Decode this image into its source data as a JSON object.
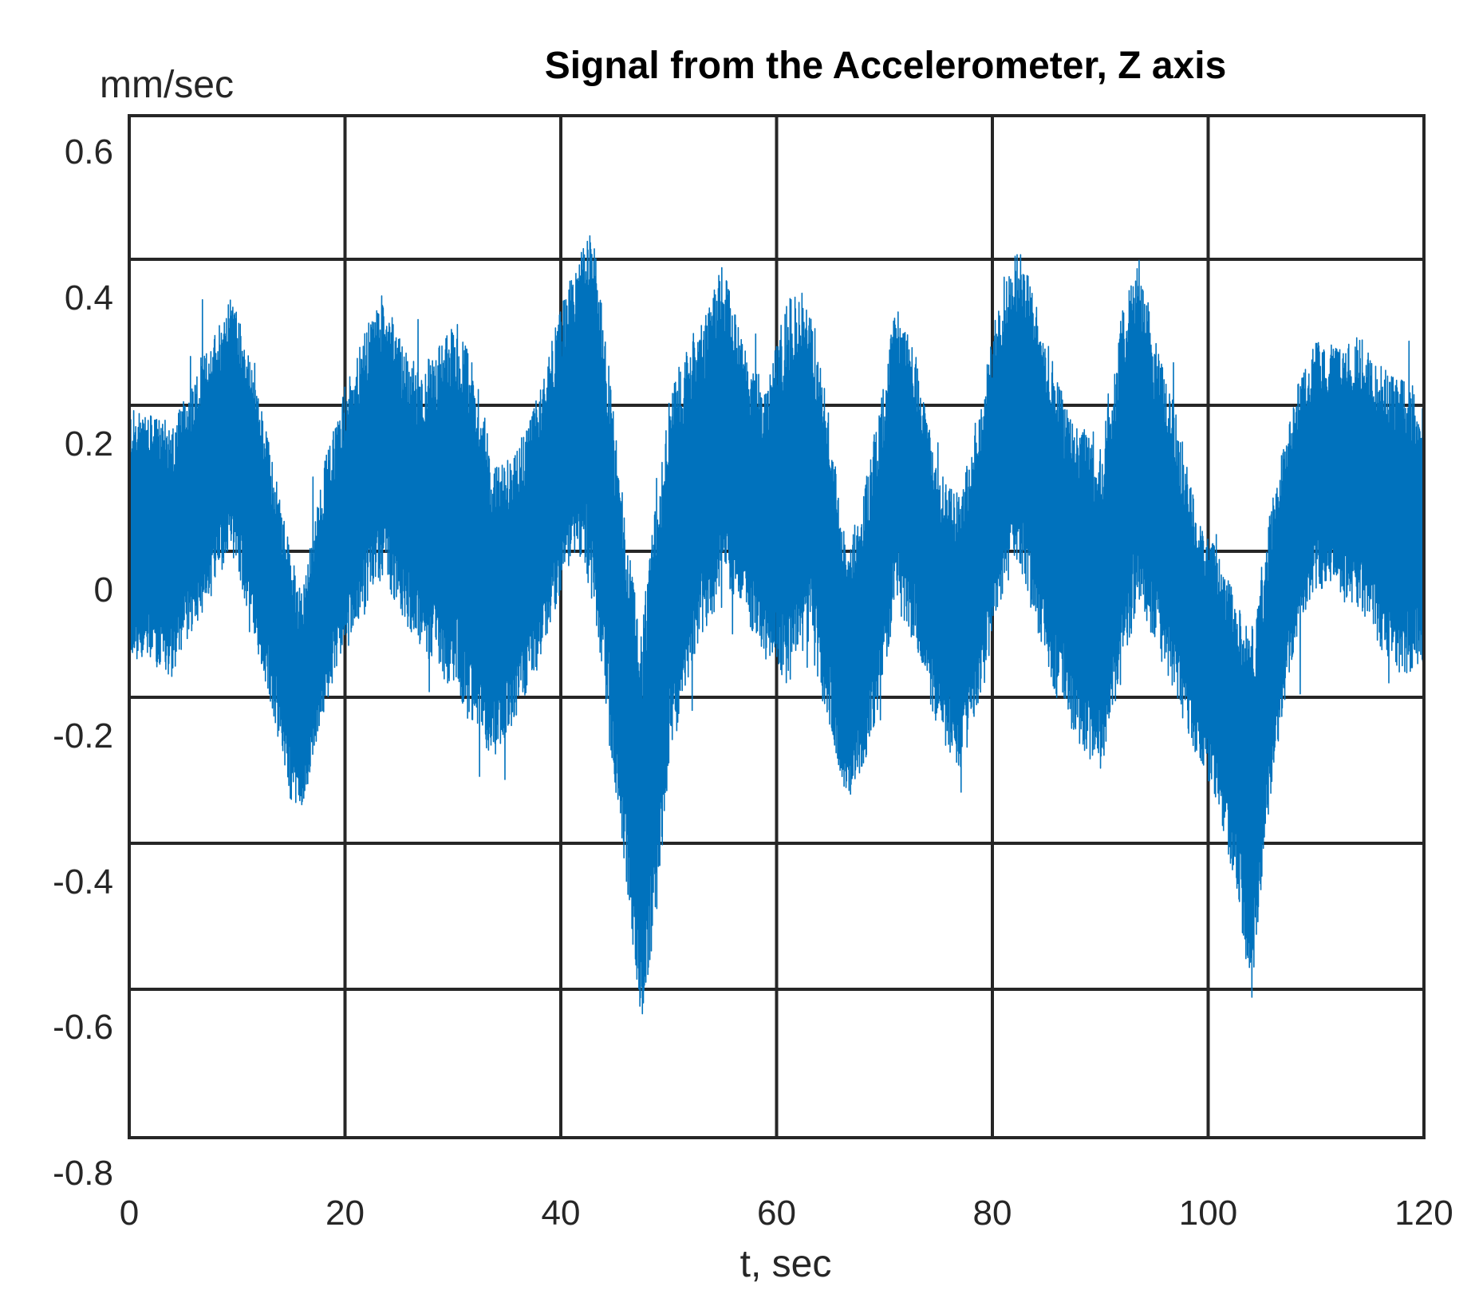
{
  "chart_data": {
    "type": "line",
    "title": "Signal from the Accelerometer, Z axis",
    "xlabel": "t, sec",
    "ylabel": "mm/sec",
    "xlim": [
      0,
      120
    ],
    "ylim": [
      -0.8,
      0.6
    ],
    "x_ticks": [
      0,
      20,
      40,
      60,
      80,
      100,
      120
    ],
    "y_ticks": [
      0.6,
      0.4,
      0.2,
      0,
      -0.2,
      -0.4,
      -0.6,
      -0.8
    ],
    "x_tick_labels": [
      "0",
      "20",
      "40",
      "60",
      "80",
      "100",
      "120"
    ],
    "y_tick_labels": [
      "0.6",
      "0.4",
      "0.2",
      "0",
      "-0.2",
      "-0.4",
      "-0.6",
      "-0.8"
    ],
    "grid": true,
    "line_color": "#0072BD",
    "series": [
      {
        "x": [
          0,
          2,
          4,
          6,
          8,
          9.5,
          11,
          13,
          15,
          16,
          18,
          20,
          22,
          23.5,
          25,
          27,
          29,
          30.5,
          32,
          34,
          36,
          38,
          40,
          42,
          43,
          44.5,
          46,
          47.5,
          49,
          50,
          52,
          54,
          55,
          57,
          59,
          61,
          63,
          65,
          66.5,
          68,
          70,
          71,
          73,
          75,
          77,
          79,
          81,
          82.5,
          84,
          86,
          88,
          90,
          92,
          93.5,
          95,
          97,
          99,
          101,
          103,
          104,
          106,
          108,
          110,
          112,
          114,
          116,
          118,
          120
        ],
        "y_min": [
          -0.14,
          -0.15,
          -0.17,
          -0.1,
          -0.05,
          0.0,
          -0.08,
          -0.2,
          -0.34,
          -0.36,
          -0.22,
          -0.12,
          -0.08,
          -0.03,
          -0.08,
          -0.13,
          -0.17,
          -0.2,
          -0.25,
          -0.28,
          -0.22,
          -0.15,
          -0.05,
          0.0,
          -0.08,
          -0.25,
          -0.44,
          -0.65,
          -0.5,
          -0.3,
          -0.15,
          -0.09,
          -0.04,
          -0.08,
          -0.15,
          -0.18,
          -0.12,
          -0.25,
          -0.34,
          -0.3,
          -0.18,
          -0.07,
          -0.13,
          -0.25,
          -0.3,
          -0.2,
          -0.05,
          -0.02,
          -0.1,
          -0.2,
          -0.26,
          -0.3,
          -0.18,
          -0.06,
          -0.12,
          -0.2,
          -0.28,
          -0.35,
          -0.5,
          -0.62,
          -0.3,
          -0.13,
          -0.05,
          -0.06,
          -0.08,
          -0.13,
          -0.17,
          -0.15
        ],
        "y_max": [
          0.2,
          0.19,
          0.18,
          0.24,
          0.31,
          0.36,
          0.28,
          0.15,
          0.0,
          -0.05,
          0.12,
          0.23,
          0.31,
          0.36,
          0.3,
          0.25,
          0.3,
          0.32,
          0.25,
          0.12,
          0.15,
          0.22,
          0.34,
          0.42,
          0.45,
          0.25,
          0.05,
          -0.1,
          0.1,
          0.22,
          0.3,
          0.35,
          0.4,
          0.28,
          0.23,
          0.35,
          0.36,
          0.18,
          0.0,
          0.08,
          0.24,
          0.35,
          0.27,
          0.12,
          0.08,
          0.22,
          0.38,
          0.42,
          0.35,
          0.24,
          0.18,
          0.15,
          0.33,
          0.42,
          0.3,
          0.2,
          0.05,
          0.0,
          -0.08,
          -0.1,
          0.08,
          0.22,
          0.3,
          0.28,
          0.3,
          0.26,
          0.24,
          0.22
        ]
      }
    ]
  }
}
